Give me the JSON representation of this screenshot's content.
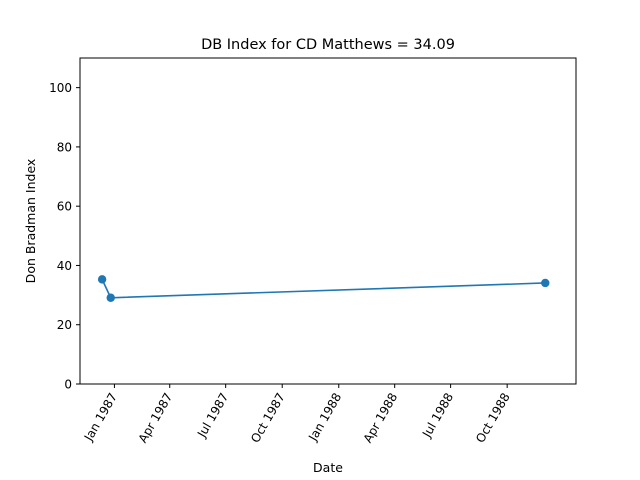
{
  "chart_data": {
    "type": "line",
    "title": "DB Index for CD Matthews = 34.09",
    "xlabel": "Date",
    "ylabel": "Don Bradman Index",
    "ylim": [
      0,
      110
    ],
    "xlim": [
      "1986-11-06",
      "1989-01-21"
    ],
    "yticks": [
      0,
      20,
      40,
      60,
      80,
      100
    ],
    "xticks": [
      {
        "date": "1987-01-01",
        "label": "Jan 1987"
      },
      {
        "date": "1987-04-01",
        "label": "Apr 1987"
      },
      {
        "date": "1987-07-01",
        "label": "Jul 1987"
      },
      {
        "date": "1987-10-01",
        "label": "Oct 1987"
      },
      {
        "date": "1988-01-01",
        "label": "Jan 1988"
      },
      {
        "date": "1988-04-01",
        "label": "Apr 1988"
      },
      {
        "date": "1988-07-01",
        "label": "Jul 1988"
      },
      {
        "date": "1988-10-01",
        "label": "Oct 1988"
      }
    ],
    "series": [
      {
        "color": "#1f77b4",
        "points": [
          {
            "x": "1986-12-12",
            "y": 35.3
          },
          {
            "x": "1986-12-26",
            "y": 29.1
          },
          {
            "x": "1988-12-02",
            "y": 34.09
          }
        ]
      }
    ],
    "grid": false,
    "legend": "none"
  }
}
